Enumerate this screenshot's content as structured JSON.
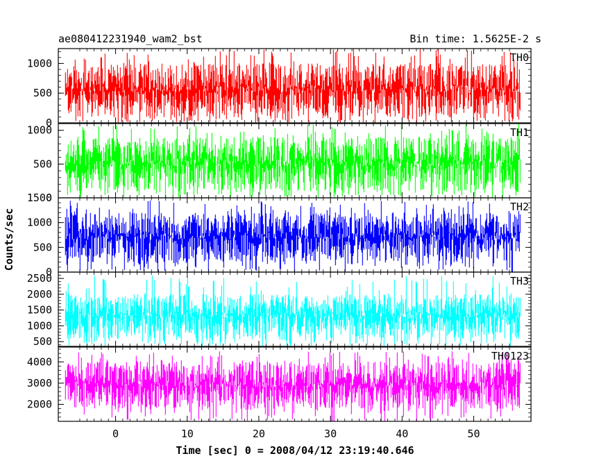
{
  "chart_data": {
    "type": "line",
    "title": "ae080412231940_wam2_bst",
    "subtitle": "Bin time: 1.5625E-2 s",
    "xlabel": "Time [sec] 0 = 2008/04/12 23:19:40.646",
    "ylabel": "Counts/sec",
    "xlim": [
      -8,
      58
    ],
    "x_ticks": [
      "0",
      "10",
      "20",
      "30",
      "40",
      "50"
    ],
    "x_range_data": [
      -7,
      56.5
    ],
    "grid": false,
    "panels": [
      {
        "name": "TH0",
        "color": "#ff0000",
        "ylim": [
          0,
          1250
        ],
        "y_ticks": [
          "0",
          "500",
          "1000"
        ],
        "typical_range": [
          100,
          1000
        ],
        "peak": 1250
      },
      {
        "name": "TH1",
        "color": "#00ff00",
        "ylim": [
          0,
          1100
        ],
        "y_ticks": [
          "0",
          "500",
          "1000"
        ],
        "typical_range": [
          100,
          900
        ],
        "peak": 1100
      },
      {
        "name": "TH2",
        "color": "#0000ff",
        "ylim": [
          0,
          1500
        ],
        "y_ticks": [
          "0",
          "500",
          "1000",
          "1500"
        ],
        "typical_range": [
          200,
          1200
        ],
        "peak": 1450
      },
      {
        "name": "TH3",
        "color": "#00ffff",
        "ylim": [
          350,
          2700
        ],
        "y_ticks": [
          "500",
          "1000",
          "1500",
          "2000",
          "2500"
        ],
        "typical_range": [
          600,
          2000
        ],
        "peak": 2600
      },
      {
        "name": "TH0123",
        "color": "#ff00ff",
        "ylim": [
          1200,
          4700
        ],
        "y_ticks": [
          "2000",
          "3000",
          "4000"
        ],
        "typical_range": [
          1800,
          4000
        ],
        "peak": 4500
      }
    ]
  }
}
